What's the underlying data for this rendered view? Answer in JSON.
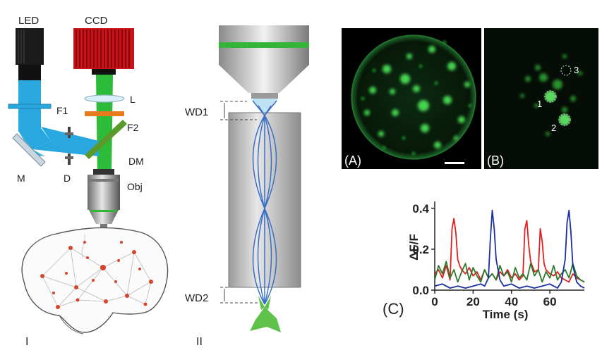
{
  "panel_one": {
    "label_led": "LED",
    "label_ccd": "CCD",
    "label_f1": "F1",
    "label_l": "L",
    "label_f2": "F2",
    "label_dm": "DM",
    "label_m": "M",
    "label_d": "D",
    "label_obj": "Obj",
    "roman": "I",
    "colors": {
      "excitation": "#29a8e0",
      "emission": "#2dbb3a",
      "camera": "#c8121a",
      "filter_f2": "#e87a1e",
      "neurons": "#d9432b"
    }
  },
  "panel_two": {
    "label_wd1": "WD1",
    "label_wd2": "WD2",
    "roman": "II",
    "colors": {
      "rays": "#3a6fc4",
      "neuron": "#5ec24a",
      "lens_band": "#36b43a"
    }
  },
  "image_a": {
    "label": "(A)"
  },
  "image_b": {
    "label": "(B)",
    "roi_1": "1",
    "roi_2": "2",
    "roi_3": "3"
  },
  "chart_label": "(C)",
  "chart_data": {
    "type": "line",
    "xlabel": "Time (s)",
    "ylabel": "ΔF/F",
    "xlim": [
      0,
      78
    ],
    "ylim": [
      0,
      0.42
    ],
    "x_ticks": [
      "0",
      "20",
      "40",
      "60"
    ],
    "y_ticks": [
      "0.0",
      "0.2",
      "0.4"
    ],
    "grid": false,
    "series": [
      {
        "color": "#e02020",
        "x": [
          0,
          2,
          4,
          6,
          8,
          9,
          10,
          11,
          12,
          13,
          14,
          16,
          18,
          20,
          22,
          24,
          26,
          28,
          30,
          32,
          34,
          36,
          38,
          40,
          42,
          44,
          46,
          47,
          48,
          49,
          50,
          52,
          54,
          55,
          56,
          57,
          58,
          60,
          62,
          64,
          66,
          68,
          70,
          72,
          74,
          76,
          78
        ],
        "y": [
          0.08,
          0.1,
          0.06,
          0.12,
          0.05,
          0.3,
          0.35,
          0.28,
          0.15,
          0.12,
          0.1,
          0.08,
          0.11,
          0.07,
          0.09,
          0.05,
          0.1,
          0.06,
          0.08,
          0.05,
          0.09,
          0.07,
          0.1,
          0.06,
          0.08,
          0.05,
          0.07,
          0.3,
          0.34,
          0.22,
          0.14,
          0.09,
          0.1,
          0.3,
          0.24,
          0.13,
          0.1,
          0.08,
          0.07,
          0.09,
          0.06,
          0.05,
          0.04,
          0.08,
          0.06,
          0.05,
          0.04
        ]
      },
      {
        "color": "#2a7a2a",
        "x": [
          0,
          2,
          4,
          6,
          8,
          10,
          12,
          14,
          16,
          18,
          20,
          22,
          24,
          26,
          28,
          30,
          32,
          34,
          36,
          38,
          40,
          42,
          44,
          46,
          48,
          50,
          52,
          54,
          56,
          58,
          60,
          62,
          64,
          66,
          68,
          70,
          72,
          74,
          76,
          78
        ],
        "y": [
          0.05,
          0.12,
          0.08,
          0.14,
          0.06,
          0.1,
          0.04,
          0.09,
          0.13,
          0.05,
          0.11,
          0.07,
          0.04,
          0.1,
          0.06,
          0.08,
          0.05,
          0.12,
          0.07,
          0.09,
          0.04,
          0.11,
          0.06,
          0.08,
          0.05,
          0.13,
          0.07,
          0.1,
          0.04,
          0.09,
          0.06,
          0.12,
          0.05,
          0.08,
          0.1,
          0.06,
          0.13,
          0.07,
          0.05,
          0.04
        ]
      },
      {
        "color": "#1a2fa0",
        "x": [
          0,
          4,
          8,
          12,
          16,
          20,
          24,
          26,
          28,
          29,
          30,
          31,
          32,
          34,
          36,
          40,
          44,
          48,
          52,
          56,
          60,
          64,
          66,
          68,
          69,
          70,
          71,
          72,
          74,
          76,
          78
        ],
        "y": [
          0.02,
          0.03,
          0.01,
          0.02,
          0.01,
          0.02,
          0.03,
          0.02,
          0.06,
          0.25,
          0.39,
          0.3,
          0.15,
          0.05,
          0.02,
          0.03,
          0.01,
          0.02,
          0.01,
          0.02,
          0.03,
          0.01,
          0.04,
          0.15,
          0.33,
          0.39,
          0.28,
          0.12,
          0.04,
          0.02,
          0.01
        ]
      }
    ]
  }
}
